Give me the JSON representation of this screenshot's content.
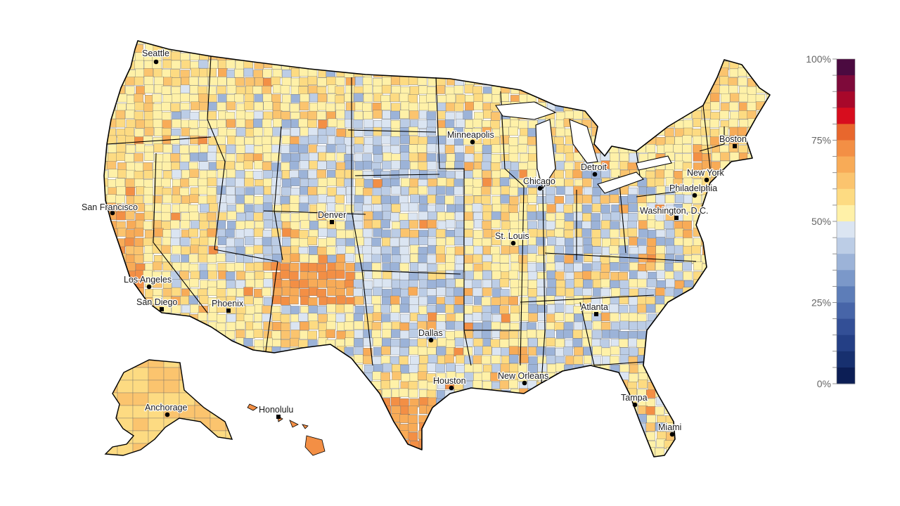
{
  "map": {
    "region": "United States",
    "choropleth_palette": {
      "low_blue": [
        "#0c1e55",
        "#17306f",
        "#243f85",
        "#334f96",
        "#4765a8",
        "#5d7db8",
        "#7b98c9",
        "#9cb3d8",
        "#bccde6",
        "#dbe5f2"
      ],
      "high_warm": [
        "#fff1a8",
        "#fddb82",
        "#fbc46e",
        "#f8ab57",
        "#f38f45",
        "#e8672d",
        "#d70d1e",
        "#a8082a",
        "#7e0a3a",
        "#4b0a40"
      ],
      "county_border": "#6b6b6b",
      "state_border": "#000000"
    },
    "cities": [
      {
        "name": "Seattle",
        "marker": "circle"
      },
      {
        "name": "San Francisco",
        "marker": "circle"
      },
      {
        "name": "Los Angeles",
        "marker": "circle"
      },
      {
        "name": "San Diego",
        "marker": "square"
      },
      {
        "name": "Phoenix",
        "marker": "square"
      },
      {
        "name": "Denver",
        "marker": "square"
      },
      {
        "name": "Minneapolis",
        "marker": "circle"
      },
      {
        "name": "Chicago",
        "marker": "circle"
      },
      {
        "name": "St. Louis",
        "marker": "circle"
      },
      {
        "name": "Dallas",
        "marker": "circle"
      },
      {
        "name": "Houston",
        "marker": "circle"
      },
      {
        "name": "New Orleans",
        "marker": "circle"
      },
      {
        "name": "Atlanta",
        "marker": "square"
      },
      {
        "name": "Tampa",
        "marker": "circle"
      },
      {
        "name": "Miami",
        "marker": "circle"
      },
      {
        "name": "Detroit",
        "marker": "circle"
      },
      {
        "name": "Boston",
        "marker": "square"
      },
      {
        "name": "New York",
        "marker": "circle"
      },
      {
        "name": "Philadelphia",
        "marker": "circle"
      },
      {
        "name": "Washington, D.C.",
        "marker": "square"
      },
      {
        "name": "Anchorage",
        "marker": "circle"
      },
      {
        "name": "Honolulu",
        "marker": "square"
      }
    ]
  },
  "legend": {
    "labels": [
      "100%",
      "75%",
      "50%",
      "25%",
      "0%"
    ],
    "colors_top_to_bottom": [
      "#4b0a40",
      "#7e0a3a",
      "#a8082a",
      "#d70d1e",
      "#e8672d",
      "#f38f45",
      "#f8ab57",
      "#fbc46e",
      "#fddb82",
      "#fff1a8",
      "#dbe5f2",
      "#bccde6",
      "#9cb3d8",
      "#7b98c9",
      "#5d7db8",
      "#4765a8",
      "#334f96",
      "#243f85",
      "#17306f",
      "#0c1e55"
    ]
  }
}
